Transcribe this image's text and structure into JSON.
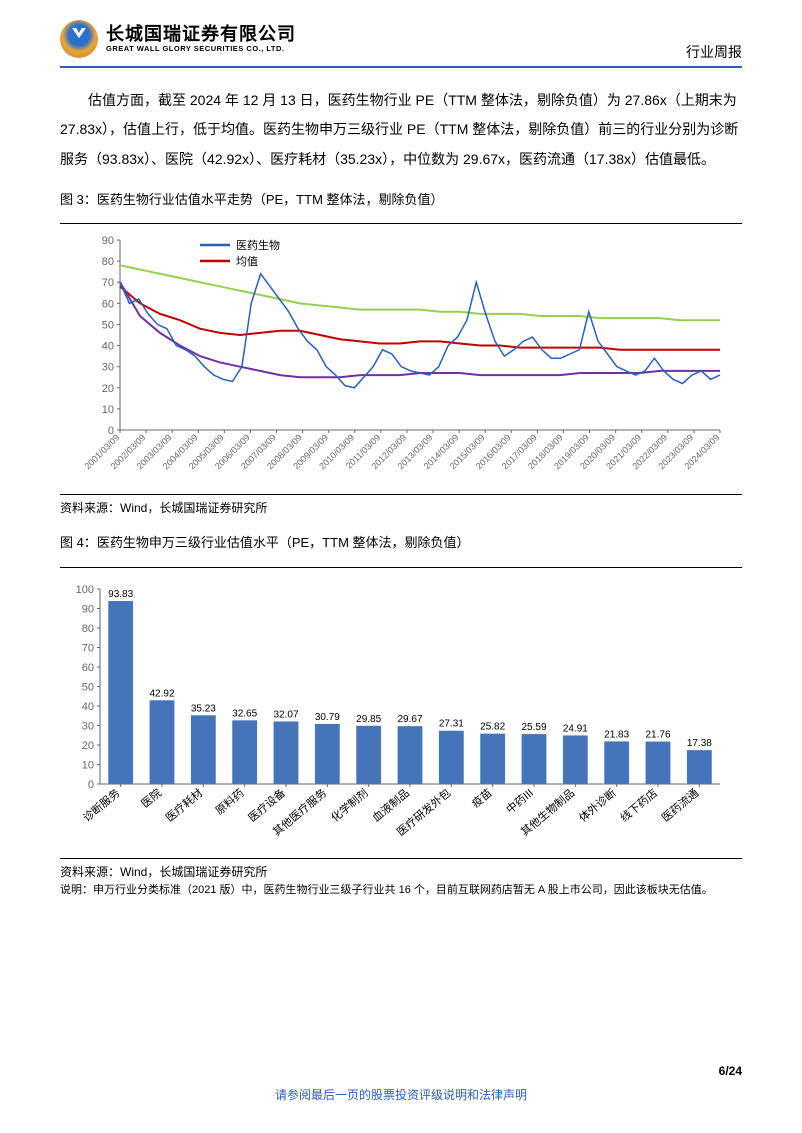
{
  "header": {
    "logo_cn": "长城国瑞证券有限公司",
    "logo_en": "GREAT WALL GLORY SECURITIES CO., LTD.",
    "report_type": "行业周报"
  },
  "paragraph": "估值方面，截至 2024 年 12 月 13 日，医药生物行业 PE（TTM 整体法，剔除负值）为 27.86x（上期末为 27.83x），估值上行，低于均值。医药生物申万三级行业 PE（TTM 整体法，剔除负值）前三的行业分别为诊断服务（93.83x）、医院（42.92x）、医疗耗材（35.23x），中位数为 29.67x，医药流通（17.38x）估值最低。",
  "chart3": {
    "title": "图 3：医药生物行业估值水平走势（PE，TTM 整体法，剔除负值）",
    "type": "line",
    "legend": [
      {
        "label": "医药生物",
        "color": "#2a5fb8"
      },
      {
        "label": "均值",
        "color": "#c00000"
      }
    ],
    "extra_lines": [
      {
        "color": "#92d050"
      },
      {
        "color": "#7030a0"
      }
    ],
    "ylim": [
      0,
      90
    ],
    "ytick_step": 10,
    "x_labels": [
      "2001/03/09",
      "2002/03/09",
      "2003/03/09",
      "2004/03/09",
      "2005/03/09",
      "2006/03/09",
      "2007/03/09",
      "2008/03/09",
      "2009/03/09",
      "2010/03/09",
      "2011/03/09",
      "2012/03/09",
      "2013/03/09",
      "2014/03/09",
      "2015/03/09",
      "2016/03/09",
      "2017/03/09",
      "2018/03/09",
      "2019/03/09",
      "2020/03/09",
      "2021/03/09",
      "2022/03/09",
      "2023/03/09",
      "2024/03/09"
    ],
    "blue_y": [
      70,
      60,
      62,
      55,
      50,
      48,
      40,
      38,
      35,
      30,
      26,
      24,
      23,
      30,
      60,
      74,
      68,
      62,
      56,
      48,
      42,
      38,
      30,
      26,
      21,
      20,
      25,
      30,
      38,
      36,
      30,
      28,
      27,
      26,
      30,
      40,
      44,
      52,
      70,
      55,
      42,
      35,
      38,
      42,
      44,
      38,
      34,
      34,
      36,
      38,
      56,
      42,
      36,
      30,
      28,
      26,
      28,
      34,
      28,
      24,
      22,
      26,
      28,
      24,
      26
    ],
    "red_y": [
      68,
      60,
      55,
      52,
      48,
      46,
      45,
      46,
      47,
      47,
      45,
      43,
      42,
      41,
      41,
      42,
      42,
      41,
      40,
      40,
      39,
      39,
      39,
      39,
      39,
      38,
      38,
      38,
      38,
      38,
      38
    ],
    "green_y": [
      78,
      76,
      74,
      72,
      70,
      68,
      66,
      64,
      62,
      60,
      59,
      58,
      57,
      57,
      57,
      57,
      56,
      56,
      55,
      55,
      55,
      54,
      54,
      54,
      53,
      53,
      53,
      53,
      52,
      52,
      52
    ],
    "purple_y": [
      70,
      54,
      46,
      40,
      35,
      32,
      30,
      28,
      26,
      25,
      25,
      25,
      26,
      26,
      26,
      27,
      27,
      27,
      26,
      26,
      26,
      26,
      26,
      27,
      27,
      27,
      27,
      28,
      28,
      28,
      28
    ],
    "source": "资料来源：Wind，长城国瑞证券研究所",
    "background_color": "#ffffff",
    "grid_color": "none"
  },
  "chart4": {
    "title": "图 4：医药生物申万三级行业估值水平（PE，TTM 整体法，剔除负值）",
    "type": "bar",
    "categories": [
      "诊断服务",
      "医院",
      "医疗耗材",
      "原料药",
      "医疗设备",
      "其他医疗服务",
      "化学制剂",
      "血液制品",
      "医疗研发外包",
      "疫苗",
      "中药III",
      "其他生物制品",
      "体外诊断",
      "线下药店",
      "医药流通"
    ],
    "values": [
      93.83,
      42.92,
      35.23,
      32.65,
      32.07,
      30.79,
      29.85,
      29.67,
      27.31,
      25.82,
      25.59,
      24.91,
      21.83,
      21.76,
      17.38
    ],
    "bar_color": "#4574b8",
    "label_color": "#000000",
    "label_fontsize": 10,
    "ylim": [
      0,
      100
    ],
    "ytick_step": 10,
    "background_color": "#ffffff",
    "source": "资料来源：Wind，长城国瑞证券研究所",
    "note": "说明：申万行业分类标准（2021 版）中，医药生物行业三级子行业共 16 个，目前互联网药店暂无 A 股上市公司，因此该板块无估值。"
  },
  "footer": {
    "page": "6/24",
    "legal": "请参阅最后一页的股票投资评级说明和法律声明"
  }
}
